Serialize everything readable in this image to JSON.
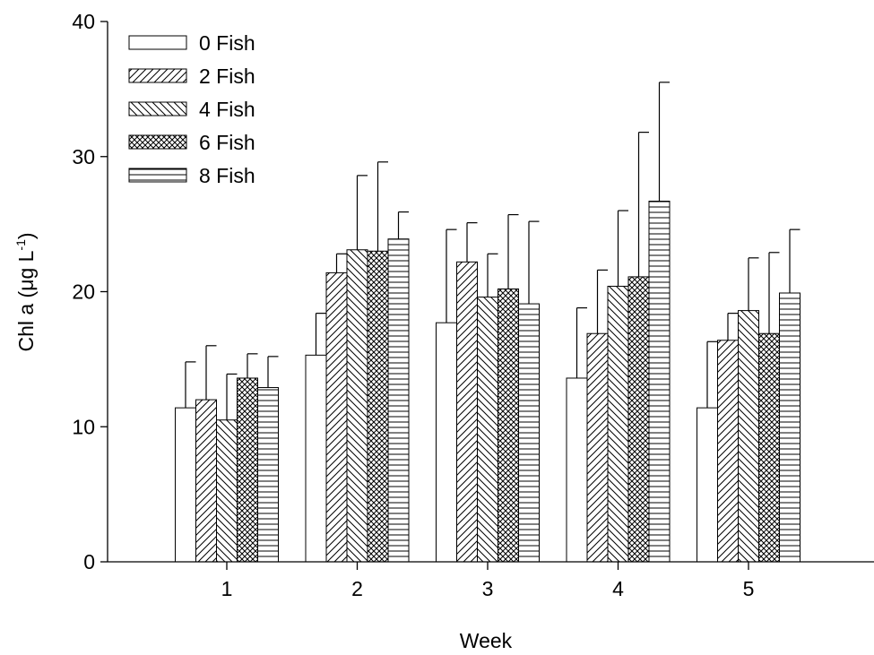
{
  "chart_data": {
    "type": "bar",
    "xlabel": "Week",
    "ylabel": "Chl a (μg L",
    "ylabel_sup": "-1",
    "ylabel_close": ")",
    "ylim": [
      0,
      40
    ],
    "yticks": [
      "0",
      "10",
      "20",
      "30",
      "40"
    ],
    "categories": [
      "1",
      "2",
      "3",
      "4",
      "5"
    ],
    "legend_position": "top-left",
    "series": [
      {
        "name": "0 Fish",
        "pattern": "none",
        "values": [
          11.4,
          15.3,
          17.7,
          13.6,
          11.4
        ],
        "errors": [
          3.4,
          3.1,
          6.9,
          5.2,
          4.9
        ]
      },
      {
        "name": "2 Fish",
        "pattern": "diag-up",
        "values": [
          12.0,
          21.4,
          22.2,
          16.9,
          16.4
        ],
        "errors": [
          4.0,
          1.4,
          2.9,
          4.7,
          2.0
        ]
      },
      {
        "name": "4 Fish",
        "pattern": "diag-down",
        "values": [
          10.5,
          23.1,
          19.6,
          20.4,
          18.6
        ],
        "errors": [
          3.4,
          5.5,
          3.2,
          5.6,
          3.9
        ]
      },
      {
        "name": "6 Fish",
        "pattern": "crosshatch",
        "values": [
          13.6,
          23.0,
          20.2,
          21.1,
          16.9
        ],
        "errors": [
          1.8,
          6.6,
          5.5,
          10.7,
          6.0
        ]
      },
      {
        "name": "8 Fish",
        "pattern": "horizontal",
        "values": [
          12.9,
          23.9,
          19.1,
          26.7,
          19.9
        ],
        "errors": [
          2.3,
          2.0,
          6.1,
          8.8,
          4.7
        ]
      }
    ]
  }
}
